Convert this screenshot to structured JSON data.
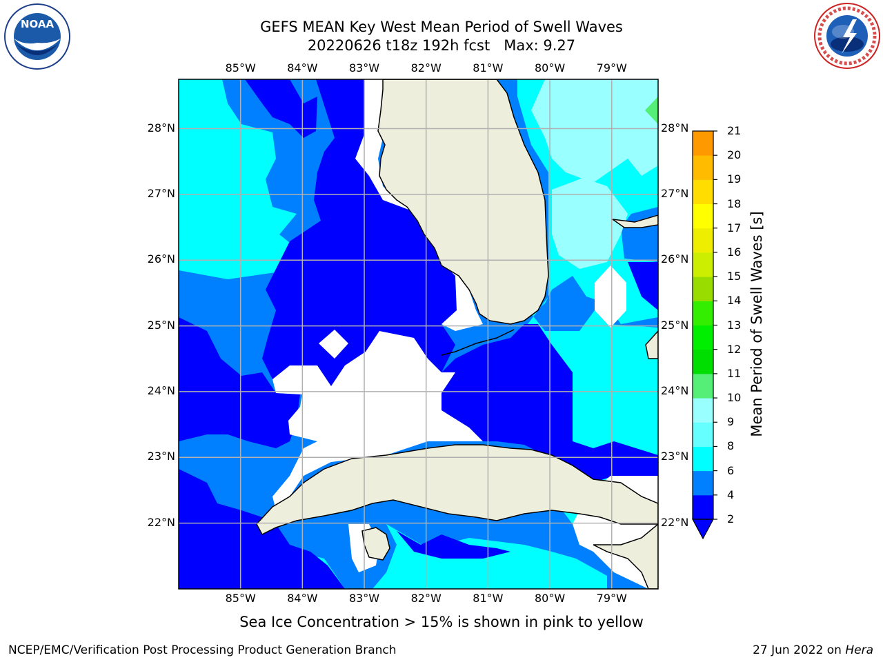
{
  "header": {
    "title_line1": "GEFS MEAN Key West Mean Period of Swell Waves",
    "title_line2": "20220626 t18z 192h fcst   Max: 9.27"
  },
  "logos": {
    "left": {
      "icon": "noaa-logo",
      "text": "NOAA",
      "ring_text": "NATIONAL OCEANIC AND ATMOSPHERIC ADMINISTRATION · U.S. DEPARTMENT OF COMMERCE"
    },
    "right": {
      "icon": "nws-logo",
      "ring_text": "NATIONAL WEATHER SERVICE"
    }
  },
  "map": {
    "lon_labels": [
      "85°W",
      "84°W",
      "83°W",
      "82°W",
      "81°W",
      "80°W",
      "79°W"
    ],
    "lat_labels": [
      "28°N",
      "27°N",
      "26°N",
      "25°N",
      "24°N",
      "23°N",
      "22°N"
    ],
    "extent": {
      "lon_min": -86.0,
      "lon_max": -78.25,
      "lat_min": 21.0,
      "lat_max": 28.75
    },
    "land_color": "#eeeedd",
    "colors": {
      "2-4": "#0000ff",
      "4-6": "#0080ff",
      "6-8": "#00ffff",
      "8-9": "#99ffff",
      "9-10": "#55ee77"
    }
  },
  "colorbar": {
    "label": "Mean Period of Swell Waves [s]",
    "ticks": [
      "21",
      "20",
      "19",
      "18",
      "17",
      "16",
      "15",
      "14",
      "13",
      "12",
      "11",
      "10",
      "9",
      "8",
      "6",
      "4",
      "2"
    ],
    "colors": [
      "#0000ff",
      "#0080ff",
      "#00ffff",
      "#66ffff",
      "#99ffff",
      "#55ee77",
      "#00dd00",
      "#00ee00",
      "#33ee00",
      "#99dd00",
      "#ccee00",
      "#eeee00",
      "#ffff00",
      "#ffdd00",
      "#ffbb00",
      "#ff9900",
      "#ff7700",
      "#ff5500",
      "#ff3300",
      "#ff1100"
    ]
  },
  "note": "Sea Ice Concentration > 15% is shown in pink to yellow",
  "footer": {
    "left": "NCEP/EMC/Verification Post Processing Product Generation Branch",
    "right_date": "27 Jun 2022 on ",
    "right_host": "Hera"
  }
}
